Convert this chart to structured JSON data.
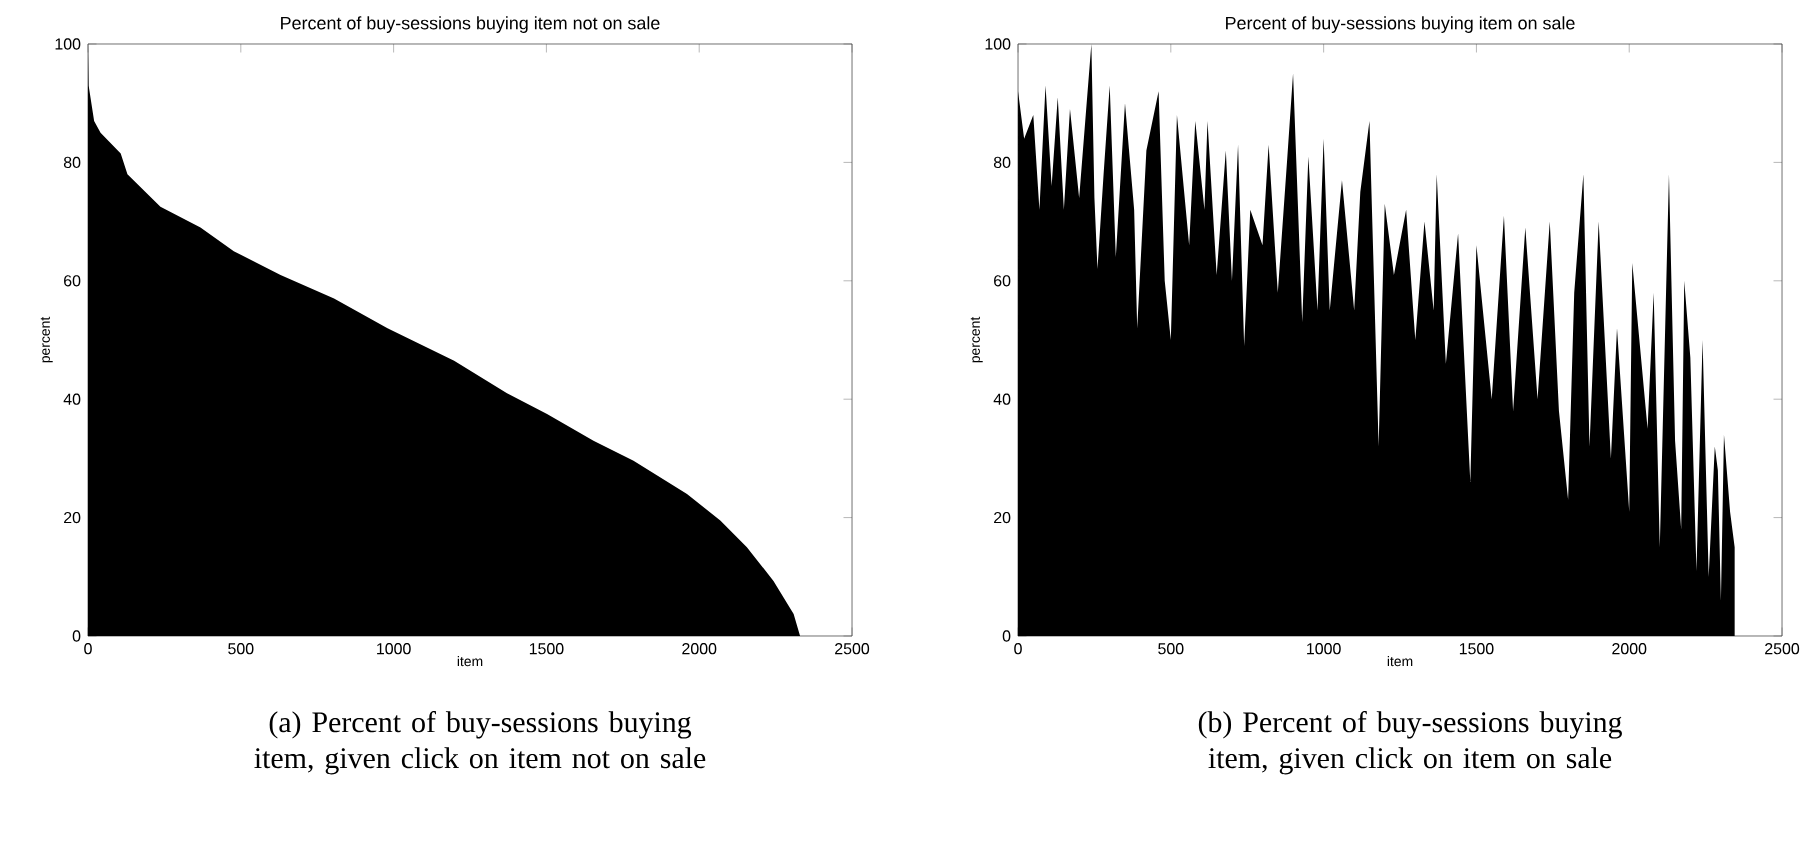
{
  "chart_data": [
    {
      "type": "area",
      "title": "Percent of buy-sessions buying item not on sale",
      "xlabel": "item",
      "ylabel": "percent",
      "annotations": [
        "(a) Percent of buy-sessions buying item, given click on item not on sale"
      ],
      "color": "#000000",
      "x": [
        0,
        2,
        20,
        41,
        107,
        129,
        237,
        368,
        477,
        630,
        805,
        980,
        1198,
        1371,
        1502,
        1654,
        1785,
        1960,
        2069,
        2156,
        2243,
        2309,
        2330
      ],
      "values": [
        100,
        93,
        87,
        85,
        81.5,
        78,
        72.5,
        69,
        65,
        61,
        57,
        52,
        46.5,
        41,
        37.5,
        33,
        29.6,
        24,
        19.5,
        15,
        9.3,
        3.7,
        0
      ],
      "xlim": [
        0,
        2500
      ],
      "ylim": [
        0,
        100
      ],
      "xticks": [
        0,
        500,
        1000,
        1500,
        2000,
        2500
      ],
      "yticks": [
        0,
        20,
        40,
        60,
        80,
        100
      ]
    },
    {
      "type": "area",
      "title": "Percent of buy-sessions buying item on sale",
      "xlabel": "item",
      "ylabel": "percent",
      "annotations": [
        "(b) Percent of buy-sessions buying item, given click on item on sale"
      ],
      "color": "#000000",
      "x": [
        0,
        20,
        50,
        70,
        90,
        110,
        130,
        150,
        170,
        200,
        220,
        240,
        250,
        260,
        280,
        300,
        320,
        350,
        380,
        390,
        420,
        460,
        480,
        500,
        520,
        560,
        580,
        610,
        620,
        650,
        680,
        700,
        720,
        740,
        760,
        800,
        820,
        850,
        880,
        900,
        930,
        950,
        980,
        1000,
        1020,
        1060,
        1100,
        1120,
        1150,
        1180,
        1200,
        1230,
        1270,
        1300,
        1330,
        1360,
        1370,
        1400,
        1440,
        1480,
        1500,
        1550,
        1590,
        1620,
        1660,
        1700,
        1740,
        1770,
        1800,
        1820,
        1850,
        1870,
        1900,
        1940,
        1960,
        2000,
        2010,
        2060,
        2080,
        2100,
        2130,
        2150,
        2170,
        2180,
        2200,
        2220,
        2240,
        2260,
        2280,
        2290,
        2300,
        2310,
        2330,
        2345
      ],
      "values": [
        92,
        84,
        88,
        72,
        93,
        76,
        91,
        72,
        89,
        74,
        87,
        100,
        74,
        62,
        78,
        93,
        64,
        90,
        72,
        52,
        82,
        92,
        60,
        50,
        88,
        66,
        87,
        72,
        87,
        61,
        82,
        60,
        83,
        49,
        72,
        66,
        83,
        58,
        80,
        95,
        53,
        81,
        55,
        84,
        55,
        77,
        55,
        75,
        87,
        32,
        73,
        61,
        72,
        50,
        70,
        55,
        78,
        46,
        68,
        26,
        66,
        40,
        71,
        38,
        69,
        40,
        70,
        38,
        23,
        58,
        78,
        32,
        70,
        30,
        52,
        21,
        63,
        35,
        58,
        15,
        78,
        33,
        18,
        60,
        47,
        11,
        50,
        10,
        32,
        28,
        6,
        34,
        21,
        15
      ],
      "xlim": [
        0,
        2500
      ],
      "ylim": [
        0,
        100
      ],
      "xticks": [
        0,
        500,
        1000,
        1500,
        2000,
        2500
      ],
      "yticks": [
        0,
        20,
        40,
        60,
        80,
        100
      ]
    }
  ]
}
